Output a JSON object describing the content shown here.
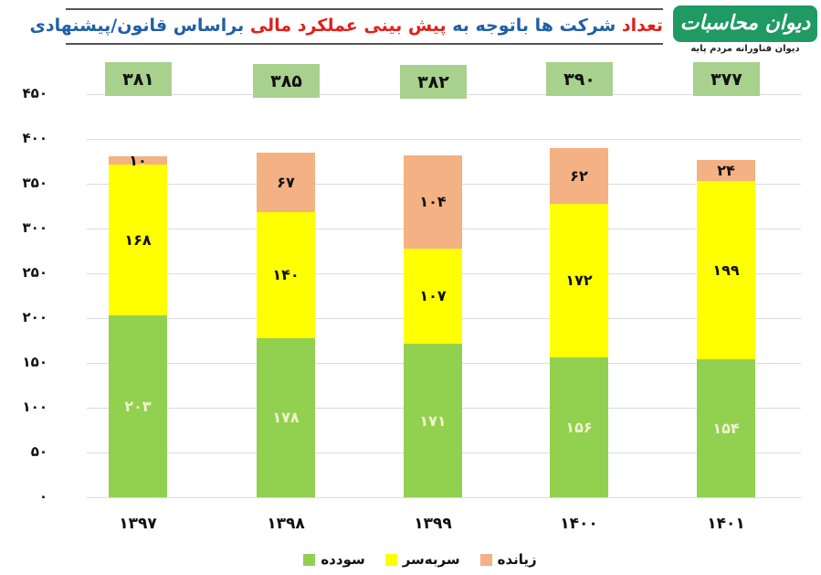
{
  "header": {
    "title_parts": [
      {
        "text": "تعداد",
        "color": "#e0201b"
      },
      {
        "text": " شرکت ها باتوجه به ",
        "color": "#1f5fa8"
      },
      {
        "text": "پیش بینی عملکرد مالی",
        "color": "#e0201b"
      },
      {
        "text": " براساس قانون/پیشنهادی",
        "color": "#1f5fa8"
      }
    ]
  },
  "logo": {
    "title": "دیوان محاسبات کشور",
    "subtitle": "دیوان فناورانه مردم پایه"
  },
  "chart_data": {
    "type": "bar",
    "stacked": true,
    "title": "تعداد شرکت ها باتوجه به پیش بینی عملکرد مالی براساس قانون/پیشنهادی",
    "xlabel": "",
    "ylabel": "",
    "ylim": [
      0,
      450
    ],
    "yticks": [
      {
        "value": 0,
        "label": "۰"
      },
      {
        "value": 50,
        "label": "۵۰"
      },
      {
        "value": 100,
        "label": "۱۰۰"
      },
      {
        "value": 150,
        "label": "۱۵۰"
      },
      {
        "value": 200,
        "label": "۲۰۰"
      },
      {
        "value": 250,
        "label": "۲۵۰"
      },
      {
        "value": 300,
        "label": "۳۰۰"
      },
      {
        "value": 350,
        "label": "۳۵۰"
      },
      {
        "value": 400,
        "label": "۴۰۰"
      },
      {
        "value": 450,
        "label": "۴۵۰"
      }
    ],
    "grid": true,
    "legend_position": "bottom",
    "categories": [
      "1397",
      "1398",
      "1399",
      "1400",
      "1401"
    ],
    "category_labels": [
      "۱۳۹۷",
      "۱۳۹۸",
      "۱۳۹۹",
      "۱۴۰۰",
      "۱۴۰۱"
    ],
    "series": [
      {
        "name": "سودده",
        "color": "#92d050",
        "label_color": "#f2f2d0",
        "values": [
          203,
          178,
          171,
          156,
          154
        ],
        "labels": [
          "۲۰۳",
          "۱۷۸",
          "۱۷۱",
          "۱۵۶",
          "۱۵۴"
        ]
      },
      {
        "name": "سربه‌سر",
        "color": "#ffff00",
        "label_color": "#111111",
        "values": [
          168,
          140,
          107,
          172,
          199
        ],
        "labels": [
          "۱۶۸",
          "۱۴۰",
          "۱۰۷",
          "۱۷۲",
          "۱۹۹"
        ]
      },
      {
        "name": "زیانده",
        "color": "#f4b183",
        "label_color": "#111111",
        "values": [
          10,
          67,
          104,
          62,
          24
        ],
        "labels": [
          "۱۰",
          "۶۷",
          "۱۰۴",
          "۶۲",
          "۲۴"
        ]
      }
    ],
    "totals": {
      "values": [
        381,
        385,
        382,
        390,
        377
      ],
      "labels": [
        "۳۸۱",
        "۳۸۵",
        "۳۸۲",
        "۳۹۰",
        "۳۷۷"
      ],
      "box_color": "#a9d18e"
    }
  },
  "legend": {
    "items": [
      {
        "label": "زیانده",
        "color": "#f4b183"
      },
      {
        "label": "سربه‌سر",
        "color": "#ffff00"
      },
      {
        "label": "سودده",
        "color": "#92d050"
      }
    ]
  }
}
